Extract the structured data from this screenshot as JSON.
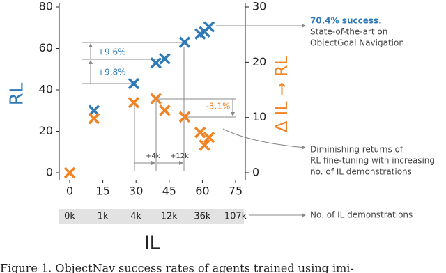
{
  "chart_data": {
    "type": "scatter",
    "x_label": "IL",
    "y_label": "RL",
    "y2_label": "Δ IL → RL",
    "xlim": [
      0,
      75
    ],
    "xticks": [
      0,
      15,
      30,
      45,
      60,
      75
    ],
    "ylim": [
      0,
      80
    ],
    "yticks": [
      0,
      20,
      40,
      60,
      80
    ],
    "y2lim": [
      0,
      30
    ],
    "y2ticks": [
      0,
      10,
      20,
      30
    ],
    "series": [
      {
        "name": "RL",
        "color": "#2f7ab8",
        "x": [
          11,
          29,
          39,
          43,
          52,
          59,
          61,
          63
        ],
        "values": [
          30,
          43,
          53,
          55,
          63,
          67,
          68,
          70.4
        ]
      },
      {
        "name": "Δ IL → RL",
        "color": "#f28222",
        "axis": "y2",
        "x": [
          0,
          11,
          29,
          39,
          43,
          52,
          59,
          63,
          61
        ],
        "values": [
          0,
          9.8,
          12.7,
          13.4,
          11.3,
          10.1,
          7.3,
          6.4,
          5.0
        ]
      }
    ],
    "demonstrations": [
      "0k",
      "1k",
      "4k",
      "12k",
      "36k",
      "107k"
    ],
    "gain_labels": [
      "+9.6%",
      "+9.8%",
      "-3.1%",
      "+4k",
      "+12k"
    ],
    "notes": [
      [
        "70.4% success.",
        "State-of-the-art on",
        "ObjectGoal Navigation"
      ],
      [
        "Diminishing returns of",
        "RL fine-tuning with increasing",
        "no. of IL demonstrations"
      ],
      [
        "No. of IL demonstrations"
      ]
    ],
    "caption": "Figure 1. ObjectNav success rates of agents trained using imi-"
  }
}
